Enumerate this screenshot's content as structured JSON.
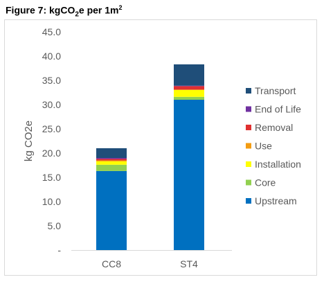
{
  "figure": {
    "title_prefix": "Figure 7: kgCO",
    "title_sub": "2",
    "title_mid": "e per 1m",
    "title_sup": "2"
  },
  "chart_data": {
    "type": "bar",
    "stacked": true,
    "title": "",
    "ylabel": "kg CO2e",
    "xlabel": "",
    "ylim": [
      0,
      45
    ],
    "yticks": [
      "-",
      "5.0",
      "10.0",
      "15.0",
      "20.0",
      "25.0",
      "30.0",
      "35.0",
      "40.0",
      "45.0"
    ],
    "categories": [
      "CC8",
      "ST4"
    ],
    "series": [
      {
        "name": "Upstream",
        "color": "#0070c0",
        "values": [
          16.3,
          31.0
        ]
      },
      {
        "name": "Core",
        "color": "#92d050",
        "values": [
          1.3,
          0.6
        ]
      },
      {
        "name": "Installation",
        "color": "#ffff00",
        "values": [
          0.7,
          1.4
        ]
      },
      {
        "name": "Use",
        "color": "#f39c12",
        "values": [
          0.2,
          0.1
        ]
      },
      {
        "name": "Removal",
        "color": "#e03030",
        "values": [
          0.3,
          0.7
        ]
      },
      {
        "name": "End of Life",
        "color": "#7030a0",
        "values": [
          0.2,
          0.1
        ]
      },
      {
        "name": "Transport",
        "color": "#1f4e79",
        "values": [
          2.0,
          4.4
        ]
      }
    ],
    "legend_position": "right",
    "grid": false
  }
}
